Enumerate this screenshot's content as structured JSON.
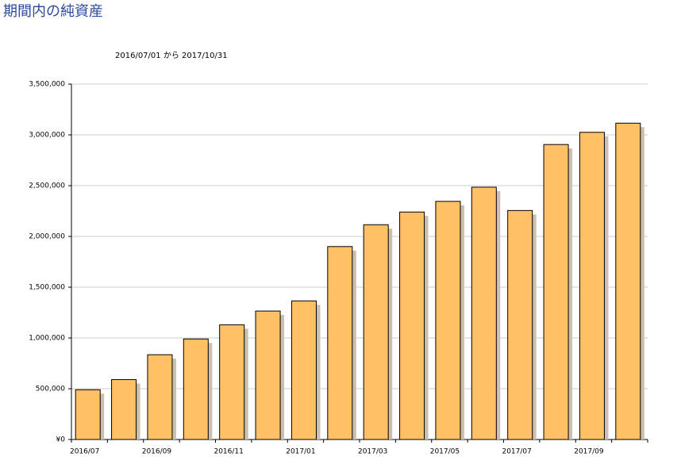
{
  "chart_data": {
    "type": "bar",
    "title": "期間内の純資産",
    "subtitle": "2016/07/01 から 2017/10/31",
    "categories": [
      "2016/07",
      null,
      "2016/09",
      null,
      "2016/11",
      null,
      "2017/01",
      null,
      "2017/03",
      null,
      "2017/05",
      null,
      "2017/07",
      null,
      "2017/09",
      null
    ],
    "values": [
      490000,
      590000,
      835000,
      990000,
      1130000,
      1265000,
      1365000,
      1900000,
      2115000,
      2240000,
      2345000,
      2485000,
      2255000,
      2905000,
      3025000,
      3115000
    ],
    "color": "#ffc066",
    "shadow_color": "#c8c0b0",
    "ylim": [
      0,
      3500000
    ],
    "yticks": [
      {
        "value": 0,
        "label": "¥0"
      },
      {
        "value": 500000,
        "label": "500,000"
      },
      {
        "value": 1000000,
        "label": "1,000,000"
      },
      {
        "value": 1500000,
        "label": "1,500,000"
      },
      {
        "value": 2000000,
        "label": "2,000,000"
      },
      {
        "value": 2500000,
        "label": "2,500,000"
      },
      {
        "value": 3000000,
        "label": "3,000,000"
      },
      {
        "value": 3500000,
        "label": "3,500,000"
      }
    ],
    "grid": true
  }
}
